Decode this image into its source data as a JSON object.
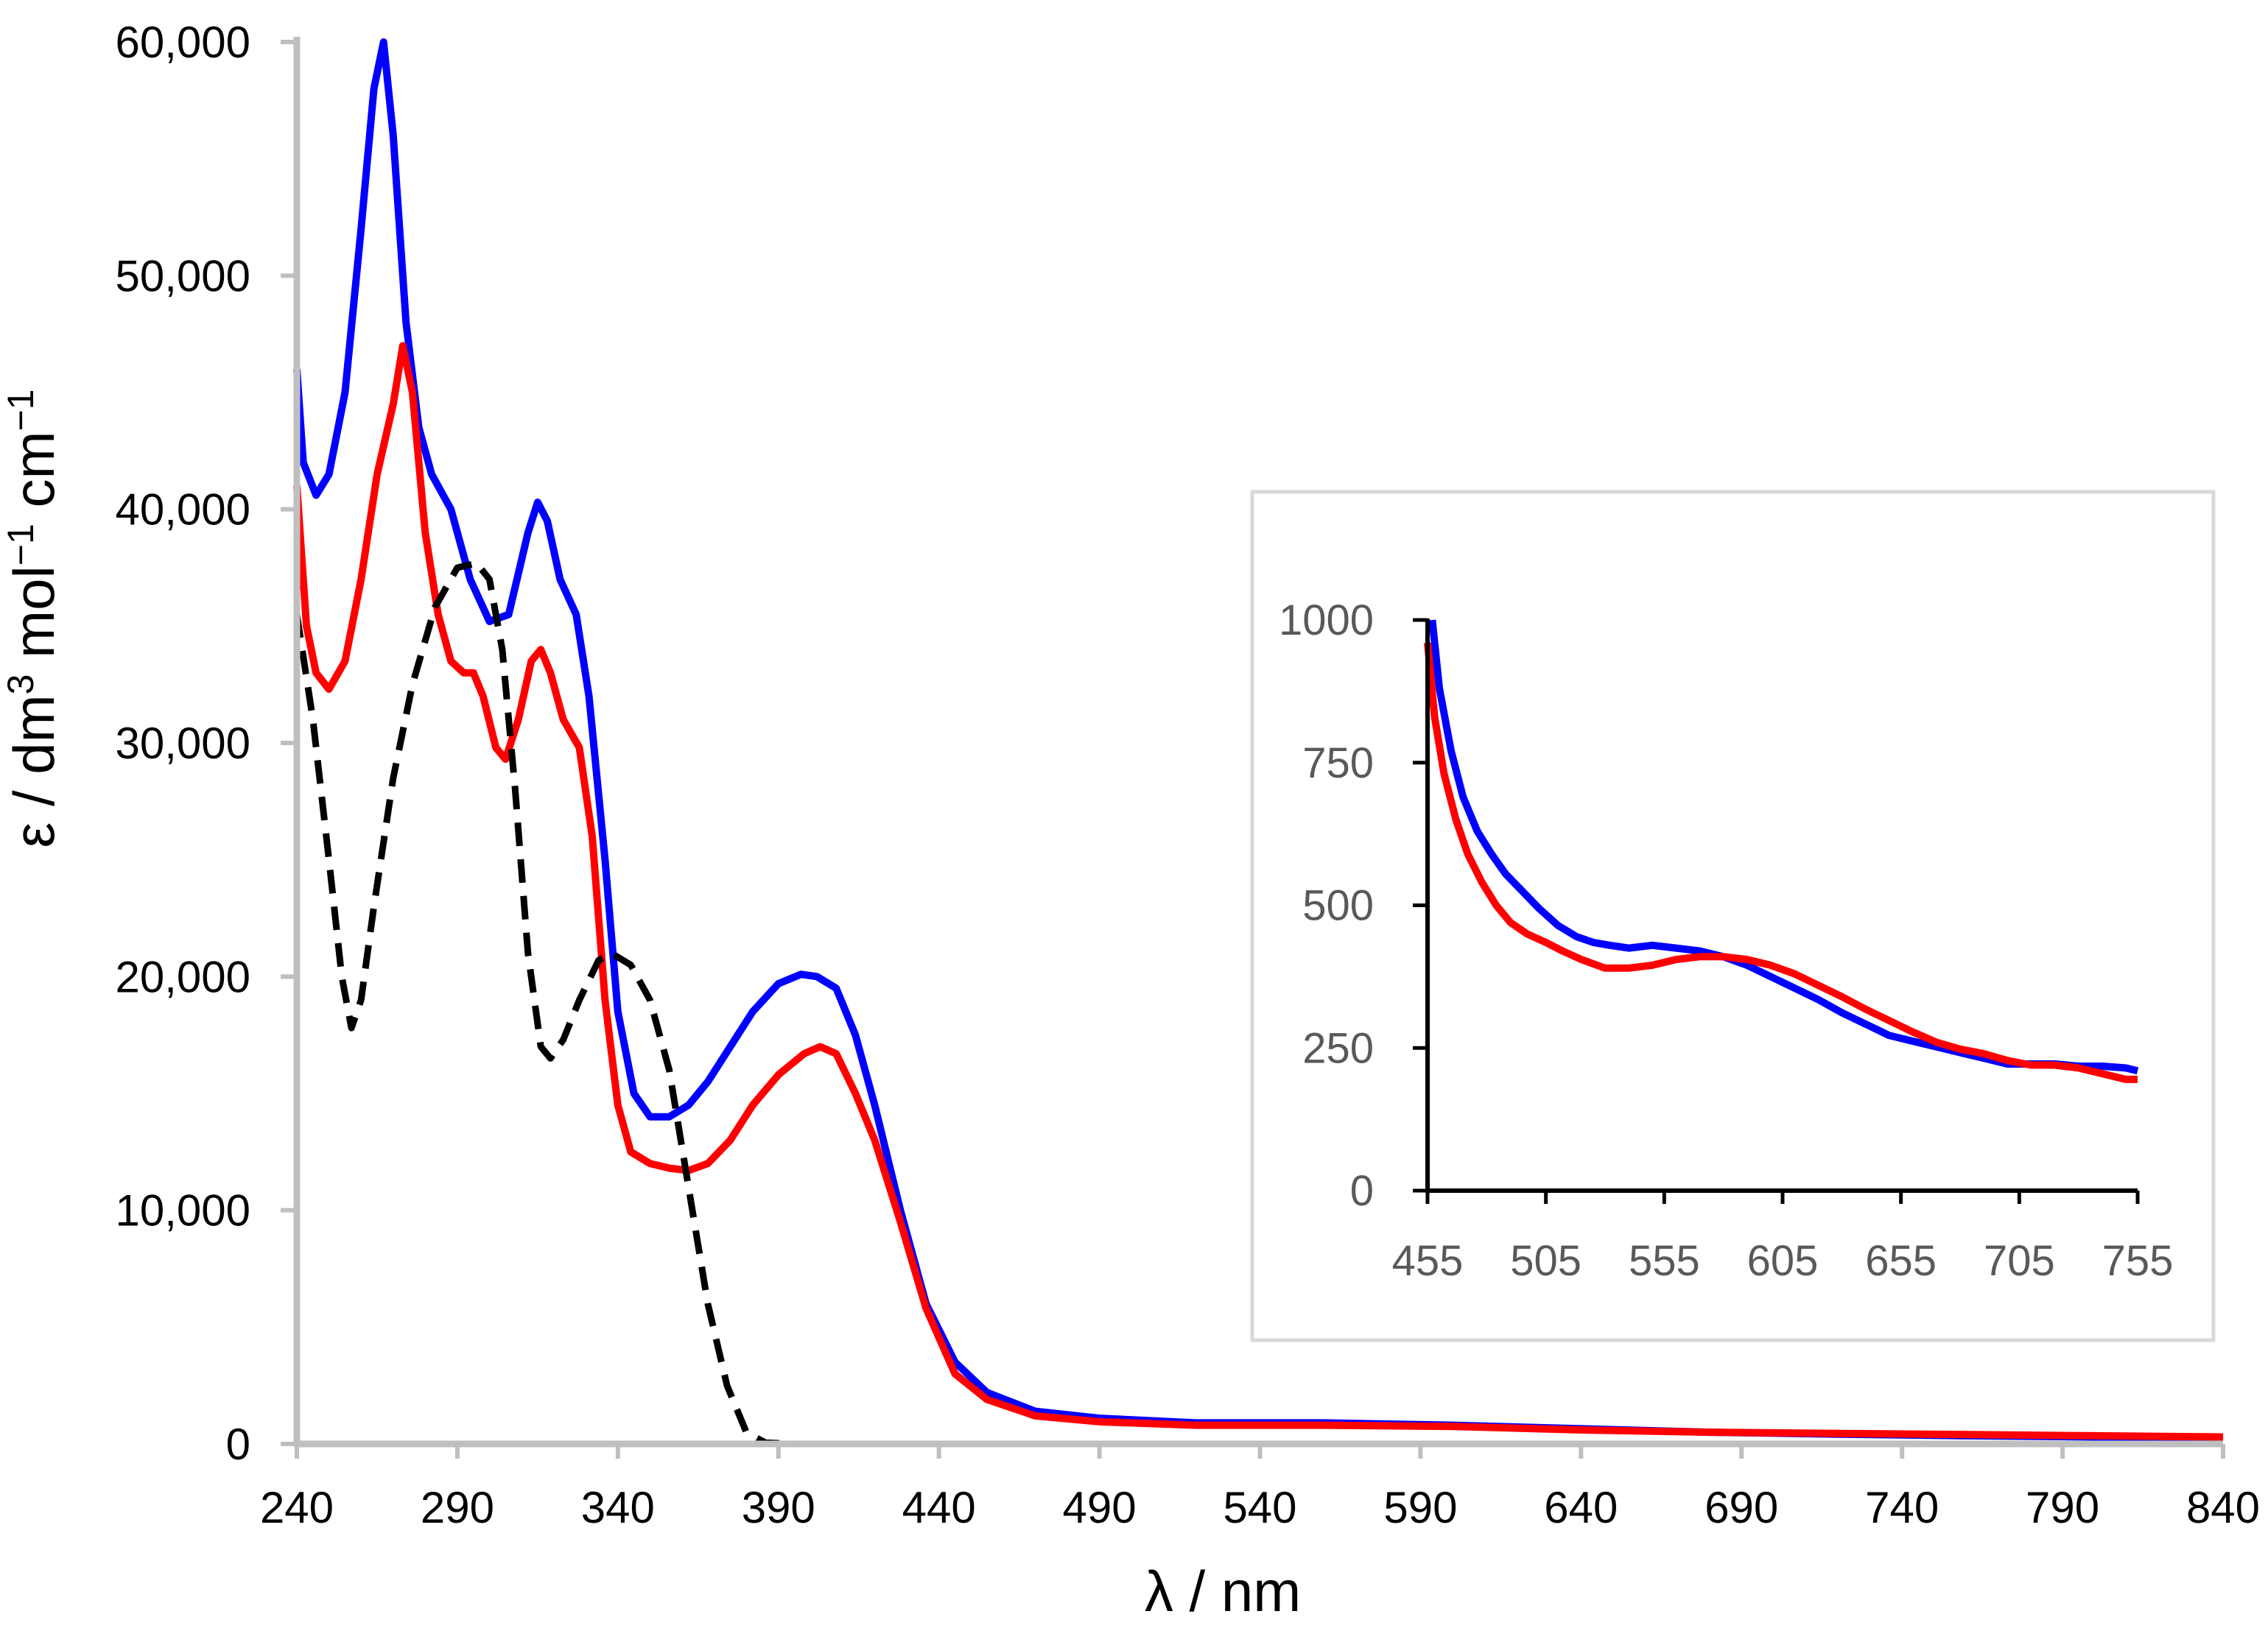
{
  "chart_data": [
    {
      "type": "line",
      "title": "",
      "xlabel": "λ / nm",
      "ylabel_parts": {
        "a": "ε / dm",
        "a_sup": "3",
        "b": " mol",
        "b_sup": "−1",
        "c": " cm",
        "c_sup": "−1"
      },
      "xlim": [
        240,
        840
      ],
      "ylim": [
        0,
        60000
      ],
      "xticks": [
        240,
        290,
        340,
        390,
        440,
        490,
        540,
        590,
        640,
        690,
        740,
        790,
        840
      ],
      "xtick_labels": [
        "240",
        "290",
        "340",
        "390",
        "440",
        "490",
        "540",
        "590",
        "640",
        "690",
        "740",
        "790",
        "840"
      ],
      "yticks": [
        0,
        10000,
        20000,
        30000,
        40000,
        50000,
        60000
      ],
      "ytick_labels": [
        "0",
        "10,000",
        "20,000",
        "30,000",
        "40,000",
        "50,000",
        "60,000"
      ],
      "grid": false,
      "series": [
        {
          "name": "blue",
          "color": "#0000ff",
          "style": "solid",
          "points": [
            [
              240,
              46000
            ],
            [
              242,
              42000
            ],
            [
              246,
              40600
            ],
            [
              250,
              41500
            ],
            [
              255,
              45000
            ],
            [
              260,
              52000
            ],
            [
              264,
              58000
            ],
            [
              267,
              60000
            ],
            [
              270,
              56000
            ],
            [
              274,
              48000
            ],
            [
              278,
              43500
            ],
            [
              282,
              41500
            ],
            [
              288,
              40000
            ],
            [
              294,
              37000
            ],
            [
              300,
              35200
            ],
            [
              306,
              35500
            ],
            [
              312,
              39000
            ],
            [
              315,
              40300
            ],
            [
              318,
              39500
            ],
            [
              322,
              37000
            ],
            [
              327,
              35500
            ],
            [
              331,
              32000
            ],
            [
              336,
              25000
            ],
            [
              340,
              18500
            ],
            [
              345,
              15000
            ],
            [
              350,
              14000
            ],
            [
              356,
              14000
            ],
            [
              362,
              14500
            ],
            [
              368,
              15500
            ],
            [
              375,
              17000
            ],
            [
              382,
              18500
            ],
            [
              390,
              19700
            ],
            [
              397,
              20100
            ],
            [
              402,
              20000
            ],
            [
              408,
              19500
            ],
            [
              414,
              17500
            ],
            [
              420,
              14500
            ],
            [
              428,
              10000
            ],
            [
              436,
              6000
            ],
            [
              445,
              3500
            ],
            [
              455,
              2200
            ],
            [
              470,
              1400
            ],
            [
              490,
              1100
            ],
            [
              520,
              900
            ],
            [
              560,
              900
            ],
            [
              600,
              800
            ],
            [
              640,
              650
            ],
            [
              680,
              500
            ],
            [
              720,
              420
            ],
            [
              760,
              350
            ],
            [
              800,
              300
            ],
            [
              840,
              300
            ]
          ]
        },
        {
          "name": "red",
          "color": "#ff0000",
          "style": "solid",
          "points": [
            [
              240,
              41000
            ],
            [
              243,
              35000
            ],
            [
              246,
              33000
            ],
            [
              250,
              32300
            ],
            [
              255,
              33500
            ],
            [
              260,
              37000
            ],
            [
              265,
              41500
            ],
            [
              270,
              44500
            ],
            [
              273,
              47000
            ],
            [
              276,
              45000
            ],
            [
              280,
              39000
            ],
            [
              284,
              35500
            ],
            [
              288,
              33500
            ],
            [
              292,
              33000
            ],
            [
              295,
              33000
            ],
            [
              298,
              32000
            ],
            [
              302,
              29800
            ],
            [
              305,
              29300
            ],
            [
              309,
              31000
            ],
            [
              313,
              33500
            ],
            [
              316,
              34000
            ],
            [
              319,
              33000
            ],
            [
              323,
              31000
            ],
            [
              328,
              29800
            ],
            [
              332,
              26000
            ],
            [
              336,
              19000
            ],
            [
              340,
              14500
            ],
            [
              344,
              12500
            ],
            [
              350,
              12000
            ],
            [
              356,
              11800
            ],
            [
              362,
              11700
            ],
            [
              368,
              12000
            ],
            [
              375,
              13000
            ],
            [
              382,
              14500
            ],
            [
              390,
              15800
            ],
            [
              398,
              16700
            ],
            [
              403,
              17000
            ],
            [
              408,
              16700
            ],
            [
              414,
              15000
            ],
            [
              420,
              13000
            ],
            [
              428,
              9500
            ],
            [
              436,
              5800
            ],
            [
              445,
              3000
            ],
            [
              455,
              1900
            ],
            [
              470,
              1200
            ],
            [
              490,
              950
            ],
            [
              520,
              800
            ],
            [
              560,
              800
            ],
            [
              600,
              750
            ],
            [
              640,
              600
            ],
            [
              680,
              500
            ],
            [
              720,
              450
            ],
            [
              760,
              400
            ],
            [
              800,
              350
            ],
            [
              840,
              300
            ]
          ]
        },
        {
          "name": "black",
          "color": "#000000",
          "style": "dashed",
          "points": [
            [
              240,
              35500
            ],
            [
              245,
              31000
            ],
            [
              250,
              25000
            ],
            [
              254,
              20000
            ],
            [
              257,
              17800
            ],
            [
              260,
              19000
            ],
            [
              264,
              23000
            ],
            [
              270,
              28500
            ],
            [
              276,
              32500
            ],
            [
              283,
              35800
            ],
            [
              290,
              37500
            ],
            [
              296,
              37700
            ],
            [
              300,
              37000
            ],
            [
              304,
              34000
            ],
            [
              308,
              28000
            ],
            [
              312,
              21000
            ],
            [
              316,
              17000
            ],
            [
              319,
              16500
            ],
            [
              323,
              17300
            ],
            [
              328,
              19000
            ],
            [
              334,
              20700
            ],
            [
              338,
              21000
            ],
            [
              344,
              20500
            ],
            [
              350,
              19000
            ],
            [
              356,
              16000
            ],
            [
              362,
              11000
            ],
            [
              368,
              6000
            ],
            [
              374,
              2500
            ],
            [
              380,
              500
            ],
            [
              386,
              50
            ],
            [
              395,
              0
            ],
            [
              450,
              0
            ],
            [
              840,
              0
            ]
          ]
        }
      ]
    },
    {
      "type": "line",
      "title": "",
      "xlabel": "",
      "ylabel": "",
      "xlim": [
        455,
        755
      ],
      "ylim": [
        0,
        1000
      ],
      "xticks": [
        455,
        505,
        555,
        605,
        655,
        705,
        755
      ],
      "xtick_labels": [
        "455",
        "505",
        "555",
        "605",
        "655",
        "705",
        "755"
      ],
      "yticks": [
        0,
        250,
        500,
        750,
        1000
      ],
      "ytick_labels": [
        "0",
        "250",
        "500",
        "750",
        "1000"
      ],
      "grid": false,
      "series": [
        {
          "name": "blue",
          "color": "#0000ff",
          "style": "solid",
          "points": [
            [
              457,
              1000
            ],
            [
              460,
              880
            ],
            [
              465,
              770
            ],
            [
              470,
              690
            ],
            [
              476,
              630
            ],
            [
              482,
              590
            ],
            [
              488,
              555
            ],
            [
              495,
              525
            ],
            [
              502,
              495
            ],
            [
              510,
              465
            ],
            [
              518,
              445
            ],
            [
              525,
              435
            ],
            [
              532,
              430
            ],
            [
              540,
              425
            ],
            [
              550,
              430
            ],
            [
              560,
              425
            ],
            [
              570,
              420
            ],
            [
              580,
              410
            ],
            [
              590,
              395
            ],
            [
              600,
              375
            ],
            [
              610,
              355
            ],
            [
              620,
              335
            ],
            [
              630,
              312
            ],
            [
              640,
              292
            ],
            [
              650,
              272
            ],
            [
              660,
              262
            ],
            [
              670,
              252
            ],
            [
              680,
              242
            ],
            [
              690,
              232
            ],
            [
              700,
              222
            ],
            [
              710,
              222
            ],
            [
              720,
              222
            ],
            [
              730,
              218
            ],
            [
              740,
              218
            ],
            [
              750,
              215
            ],
            [
              755,
              210
            ]
          ]
        },
        {
          "name": "red",
          "color": "#ff0000",
          "style": "solid",
          "points": [
            [
              455,
              960
            ],
            [
              458,
              830
            ],
            [
              462,
              730
            ],
            [
              467,
              650
            ],
            [
              472,
              590
            ],
            [
              478,
              540
            ],
            [
              484,
              500
            ],
            [
              490,
              470
            ],
            [
              497,
              450
            ],
            [
              505,
              435
            ],
            [
              512,
              420
            ],
            [
              520,
              405
            ],
            [
              530,
              390
            ],
            [
              540,
              390
            ],
            [
              550,
              395
            ],
            [
              560,
              405
            ],
            [
              570,
              410
            ],
            [
              580,
              410
            ],
            [
              590,
              405
            ],
            [
              600,
              395
            ],
            [
              610,
              380
            ],
            [
              620,
              360
            ],
            [
              630,
              340
            ],
            [
              640,
              318
            ],
            [
              650,
              298
            ],
            [
              660,
              278
            ],
            [
              670,
              260
            ],
            [
              680,
              248
            ],
            [
              690,
              240
            ],
            [
              700,
              228
            ],
            [
              710,
              220
            ],
            [
              720,
              220
            ],
            [
              730,
              215
            ],
            [
              740,
              205
            ],
            [
              750,
              195
            ],
            [
              755,
              195
            ]
          ]
        }
      ]
    }
  ]
}
